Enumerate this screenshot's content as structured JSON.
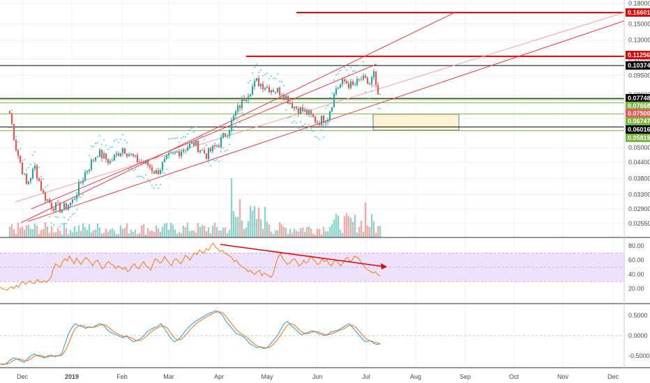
{
  "chart_data": {
    "type": "candlestick",
    "colors": {
      "up": "#26a69a",
      "down": "#ef5350",
      "channel": "#f23645",
      "channel_mid": "#f7a1a8",
      "resistance": "#e00000",
      "support_black": "#000000",
      "sar": "#26c6da",
      "rsi_line": "#f57c00",
      "rsi_band": "#ede1fb",
      "stoch_k": "#2196f3",
      "stoch_d": "#ff6d00",
      "zone_fill": "#fff3d6",
      "zone_stroke": "#5d6fa6",
      "green_level": "#7cb342"
    },
    "price_axis": {
      "scale": "log",
      "ticks": [
        "0.18000",
        "0.15000",
        "0.13000",
        "0.11000",
        "0.09500",
        "0.08000",
        "0.06500",
        "0.05000",
        "0.04400",
        "0.03800",
        "0.03300",
        "0.02900",
        "0.02550"
      ]
    },
    "x_axis": {
      "labels": [
        "Dec",
        "2019",
        "Feb",
        "Mar",
        "Apr",
        "May",
        "Jun",
        "Jul",
        "Aug",
        "Sep",
        "Oct",
        "Nov",
        "Dec"
      ]
    },
    "price_tags": [
      {
        "text": "0.16601",
        "bg": "#e00000",
        "fg": "#ffffff"
      },
      {
        "text": "0.11256",
        "bg": "#e00000",
        "fg": "#ffffff"
      },
      {
        "text": "0.10374",
        "bg": "#000000",
        "fg": "#ffffff"
      },
      {
        "text": "0.07748",
        "bg": "#000000",
        "fg": "#ffffff"
      },
      {
        "text": "0.07668",
        "bg": "#7cb342",
        "fg": "#ffffff"
      },
      {
        "text": "0.07500",
        "bg": "#ef5350",
        "fg": "#ffffff"
      },
      {
        "text": "0.06747",
        "bg": "#7cb342",
        "fg": "#ffffff"
      },
      {
        "text": "0.06016",
        "bg": "#000000",
        "fg": "#ffffff"
      },
      {
        "text": "0.05819",
        "bg": "#7cb342",
        "fg": "#ffffff"
      }
    ],
    "horizontal_levels": [
      {
        "price": 0.16601,
        "color": "#e00000",
        "from": "Jun",
        "width": 2
      },
      {
        "price": 0.11256,
        "color": "#e00000",
        "from": "May",
        "width": 2
      },
      {
        "price": 0.10374,
        "color": "#000000",
        "from": "start",
        "width": 1
      },
      {
        "price": 0.07748,
        "color": "#000000",
        "from": "start",
        "width": 1
      },
      {
        "price": 0.07668,
        "color": "#7cb342",
        "from": "start",
        "width": 1
      },
      {
        "price": 0.0745,
        "color": "#7cb342",
        "from": "Jan",
        "width": 1
      },
      {
        "price": 0.06747,
        "color": "#7cb342",
        "from": "Jan",
        "width": 1
      },
      {
        "price": 0.06016,
        "color": "#000000",
        "from": "start",
        "width": 1
      },
      {
        "price": 0.05819,
        "color": "#7cb342",
        "from": "Jan",
        "width": 1
      }
    ],
    "rsi": {
      "ticks": [
        "80.00",
        "60.00",
        "40.00",
        "20.00"
      ],
      "band": [
        30,
        70
      ],
      "values": [
        22,
        20,
        19,
        18,
        21,
        23,
        20,
        25,
        22,
        28,
        30,
        26,
        29,
        31,
        28,
        27,
        33,
        30,
        29,
        31,
        29,
        32,
        36,
        48,
        55,
        52,
        50,
        58,
        62,
        59,
        66,
        60,
        55,
        63,
        58,
        54,
        60,
        64,
        61,
        57,
        52,
        58,
        60,
        55,
        48,
        50,
        56,
        58,
        54,
        53,
        48,
        52,
        50,
        47,
        50,
        44,
        46,
        52,
        55,
        50,
        48,
        54,
        58,
        52,
        50,
        46,
        55,
        62,
        60,
        56,
        58,
        65,
        60,
        56,
        52,
        60,
        62,
        58,
        55,
        60,
        67,
        64,
        60,
        66,
        70,
        68,
        74,
        72,
        70,
        76,
        74,
        80,
        84,
        78,
        76,
        72,
        74,
        70,
        68,
        66,
        64,
        58,
        60,
        55,
        52,
        50,
        48,
        44,
        46,
        42,
        40,
        44,
        46,
        38,
        42,
        40,
        38,
        36,
        42,
        55,
        64,
        70,
        62,
        58,
        54,
        56,
        60,
        62,
        58,
        52,
        54,
        60,
        56,
        58,
        66,
        62,
        58,
        54,
        56,
        62,
        58,
        60,
        55,
        52,
        58,
        60,
        56,
        52,
        56,
        62,
        64,
        58,
        60,
        66,
        64,
        62,
        56,
        52,
        48,
        46,
        44,
        42,
        44,
        40,
        38
      ]
    },
    "stoch": {
      "ticks": [
        "0.5000",
        "0.0000",
        "-0.5000"
      ],
      "k": [
        -0.7,
        -0.72,
        -0.68,
        -0.6,
        -0.55,
        -0.58,
        -0.62,
        -0.66,
        -0.58,
        -0.5,
        -0.45,
        -0.5,
        -0.52,
        -0.55,
        -0.5,
        -0.48,
        -0.52,
        -0.5,
        -0.45,
        -0.2,
        0.05,
        0.2,
        0.3,
        0.25,
        0.22,
        0.18,
        0.22,
        0.2,
        0.25,
        0.3,
        0.28,
        0.18,
        0.1,
        0.05,
        0.02,
        -0.02,
        -0.05,
        0.0,
        -0.1,
        -0.15,
        -0.12,
        -0.08,
        0.0,
        0.1,
        0.15,
        0.2,
        0.22,
        0.3,
        0.18,
        0.05,
        -0.08,
        -0.15,
        -0.1,
        -0.02,
        0.1,
        0.2,
        0.28,
        0.35,
        0.4,
        0.45,
        0.5,
        0.55,
        0.58,
        0.62,
        0.58,
        0.5,
        0.35,
        0.25,
        0.15,
        0.05,
        0.02,
        -0.02,
        -0.1,
        -0.2,
        -0.25,
        -0.3,
        -0.28,
        -0.32,
        -0.3,
        -0.2,
        -0.1,
        0.0,
        0.15,
        0.3,
        0.35,
        0.25,
        0.18,
        0.1,
        0.02,
        0.05,
        0.08,
        0.12,
        0.1,
        0.05,
        0.02,
        0.0,
        0.05,
        0.1,
        0.12,
        0.15,
        0.2,
        0.25,
        0.3,
        0.2,
        0.1,
        0.0,
        -0.1,
        -0.15,
        -0.12,
        -0.18,
        -0.22,
        -0.2
      ]
    }
  }
}
